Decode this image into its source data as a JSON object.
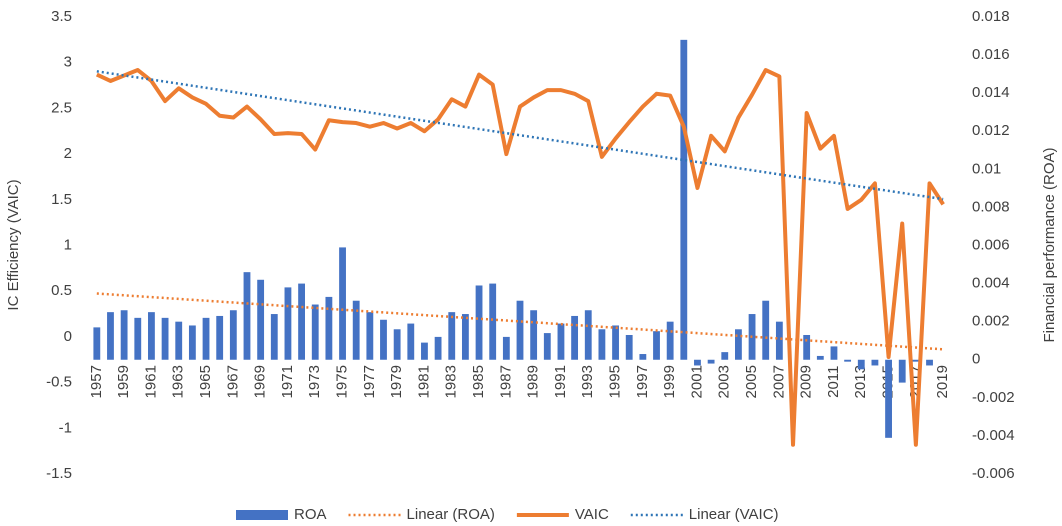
{
  "chart_data": {
    "type": "combo",
    "y_axis_title": "IC Efficiency (VAIC)",
    "y2_axis_title": "Financial performance (ROA)",
    "categories": [
      "1957",
      null,
      "1959",
      null,
      "1961",
      null,
      "1963",
      null,
      "1965",
      null,
      "1967",
      null,
      "1969",
      null,
      "1971",
      null,
      "1973",
      null,
      "1975",
      null,
      "1977",
      null,
      "1979",
      null,
      "1981",
      null,
      "1983",
      null,
      "1985",
      null,
      "1987",
      null,
      "1989",
      null,
      "1991",
      null,
      "1993",
      null,
      "1995",
      null,
      "1997",
      null,
      "1999",
      null,
      "2001",
      null,
      "2003",
      null,
      "2005",
      null,
      "2007",
      null,
      "2009",
      null,
      "2011",
      null,
      "2013",
      null,
      "2015",
      null,
      "2017",
      null,
      "2019"
    ],
    "series": [
      {
        "name": "ROA",
        "type": "bar",
        "axis": "y2",
        "color": "#4472c4",
        "values": [
          0.0017,
          0.0025,
          0.0026,
          0.0022,
          0.0025,
          0.0022,
          0.002,
          0.0018,
          0.0022,
          0.0023,
          0.0026,
          0.0046,
          0.0042,
          0.0024,
          0.0038,
          0.004,
          0.0029,
          0.0033,
          0.0059,
          0.0031,
          0.0025,
          0.0021,
          0.0016,
          0.0019,
          0.0009,
          0.0012,
          0.0025,
          0.0024,
          0.0039,
          0.004,
          0.0012,
          0.0031,
          0.0026,
          0.0014,
          0.0019,
          0.0023,
          0.0026,
          0.0016,
          0.0018,
          0.0013,
          0.0003,
          0.0015,
          0.002,
          0.0168,
          -0.0003,
          -0.0002,
          0.0004,
          0.0016,
          0.0024,
          0.0031,
          0.002,
          0,
          0.0013,
          0.0002,
          0.0007,
          -0.0001,
          -0.0005,
          -0.0003,
          -0.0041,
          -0.0012,
          -0.0001,
          -0.0003,
          0
        ],
        "trendline": {
          "name": "Linear (ROA)",
          "color": "#ed7d31"
        }
      },
      {
        "name": "VAIC",
        "type": "line",
        "color": "#ed7d31",
        "values": [
          2.87,
          2.8,
          2.86,
          2.92,
          2.8,
          2.58,
          2.72,
          2.62,
          2.55,
          2.42,
          2.4,
          2.52,
          2.38,
          2.22,
          2.23,
          2.22,
          2.05,
          2.37,
          2.35,
          2.34,
          2.3,
          2.34,
          2.28,
          2.34,
          2.25,
          2.38,
          2.6,
          2.52,
          2.87,
          2.76,
          2,
          2.52,
          2.62,
          2.7,
          2.7,
          2.66,
          2.58,
          1.97,
          2.17,
          2.35,
          2.52,
          2.66,
          2.64,
          2.3,
          1.63,
          2.2,
          2.03,
          2.4,
          2.65,
          2.92,
          2.85,
          -1.18,
          2.45,
          2.06,
          2.2,
          1.4,
          1.5,
          1.68,
          -0.22,
          1.24,
          -1.18,
          1.68,
          1.45
        ],
        "trendline": {
          "name": "Linear (VAIC)",
          "color": "#2e75b6"
        }
      }
    ],
    "ylim": [
      -1.5,
      3.5
    ],
    "yticks": [
      -1.5,
      -1,
      -0.5,
      0,
      0.5,
      1,
      1.5,
      2,
      2.5,
      3,
      3.5
    ],
    "y2lim": [
      -0.006,
      0.018
    ],
    "y2ticks": [
      -0.006,
      -0.004,
      -0.002,
      0,
      0.002,
      0.004,
      0.006,
      0.008,
      0.01,
      0.012,
      0.014,
      0.016,
      0.018
    ],
    "grid": false,
    "legend": "bottom"
  }
}
